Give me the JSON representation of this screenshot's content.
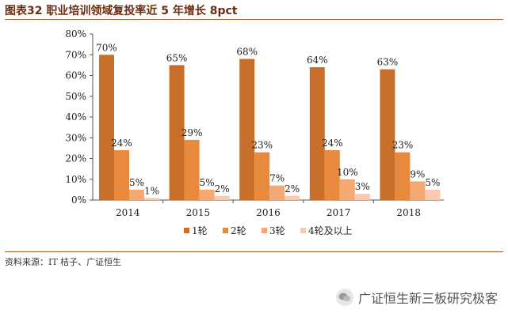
{
  "title": "图表32 职业培训领域复投率近 5 年增长 8pct",
  "source": "资料来源：IT 桔子、广证恒生",
  "watermark": {
    "text": "广证恒生新三板研究极客",
    "icon": "wechat-icon"
  },
  "colors": [
    "#c8702b",
    "#e88a3e",
    "#f4a874",
    "#f9cab0"
  ],
  "chart_data": {
    "type": "bar",
    "categories": [
      "2014",
      "2015",
      "2016",
      "2017",
      "2018"
    ],
    "series": [
      {
        "name": "1轮",
        "values": [
          70,
          65,
          68,
          64,
          63
        ]
      },
      {
        "name": "2轮",
        "values": [
          24,
          29,
          23,
          24,
          23
        ]
      },
      {
        "name": "3轮",
        "values": [
          5,
          5,
          7,
          10,
          9
        ]
      },
      {
        "name": "4轮及以上",
        "values": [
          1,
          2,
          2,
          3,
          5
        ]
      }
    ],
    "ylim": [
      0,
      80
    ],
    "yticks": [
      "0%",
      "10%",
      "20%",
      "30%",
      "40%",
      "50%",
      "60%",
      "70%",
      "80%"
    ],
    "value_suffix": "%",
    "legend": "bottom",
    "grid": false
  }
}
